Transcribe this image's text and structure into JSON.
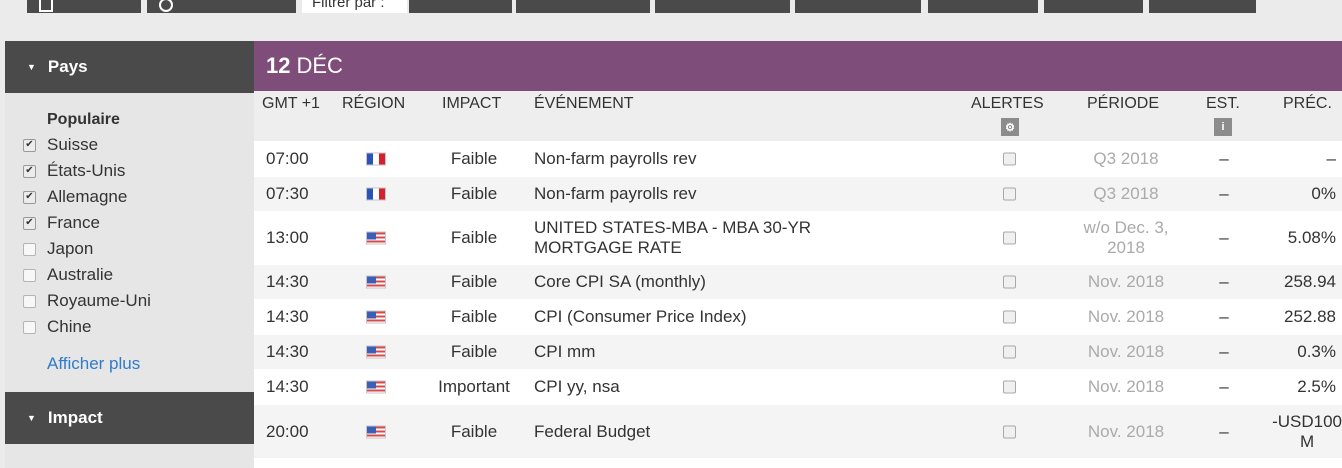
{
  "top_tabs": {
    "active_label": "Filtrer par :"
  },
  "sidebar": {
    "pays_header": "Pays",
    "popular_title": "Populaire",
    "countries": [
      {
        "name": "Suisse",
        "checked": true
      },
      {
        "name": "États-Unis",
        "checked": true
      },
      {
        "name": "Allemagne",
        "checked": true
      },
      {
        "name": "France",
        "checked": true
      },
      {
        "name": "Japon",
        "checked": false
      },
      {
        "name": "Australie",
        "checked": false
      },
      {
        "name": "Royaume-Uni",
        "checked": false
      },
      {
        "name": "Chine",
        "checked": false
      }
    ],
    "show_more": "Afficher plus",
    "impact_header": "Impact"
  },
  "date_bar": {
    "day": "12",
    "month": "DÉC"
  },
  "table": {
    "headers": {
      "time": "GMT +1",
      "region": "RÉGION",
      "impact": "IMPACT",
      "event": "ÉVÉNEMENT",
      "alerts": "ALERTES",
      "period": "PÉRIODE",
      "est": "EST.",
      "prev": "PRÉC."
    },
    "rows": [
      {
        "time": "07:00",
        "flag": "france-flag",
        "impact": "Faible",
        "event": "Non-farm payrolls rev",
        "event2": "",
        "period": "Q3 2018",
        "period2": "",
        "est": "–",
        "prev": "–",
        "prev2": ""
      },
      {
        "time": "07:30",
        "flag": "france-flag",
        "impact": "Faible",
        "event": "Non-farm payrolls rev",
        "event2": "",
        "period": "Q3 2018",
        "period2": "",
        "est": "–",
        "prev": "0%",
        "prev2": ""
      },
      {
        "time": "13:00",
        "flag": "us-flag",
        "impact": "Faible",
        "event": "UNITED STATES-MBA - MBA 30-YR",
        "event2": "MORTGAGE RATE",
        "period": "w/o Dec. 3,",
        "period2": "2018",
        "est": "–",
        "prev": "5.08%",
        "prev2": ""
      },
      {
        "time": "14:30",
        "flag": "us-flag",
        "impact": "Faible",
        "event": "Core CPI SA (monthly)",
        "event2": "",
        "period": "Nov. 2018",
        "period2": "",
        "est": "–",
        "prev": "258.94",
        "prev2": ""
      },
      {
        "time": "14:30",
        "flag": "us-flag",
        "impact": "Faible",
        "event": "CPI (Consumer Price Index)",
        "event2": "",
        "period": "Nov. 2018",
        "period2": "",
        "est": "–",
        "prev": "252.88",
        "prev2": ""
      },
      {
        "time": "14:30",
        "flag": "us-flag",
        "impact": "Faible",
        "event": "CPI mm",
        "event2": "",
        "period": "Nov. 2018",
        "period2": "",
        "est": "–",
        "prev": "0.3%",
        "prev2": ""
      },
      {
        "time": "14:30",
        "flag": "us-flag",
        "impact": "Important",
        "event": "CPI yy, nsa",
        "event2": "",
        "period": "Nov. 2018",
        "period2": "",
        "est": "–",
        "prev": "2.5%",
        "prev2": ""
      },
      {
        "time": "20:00",
        "flag": "us-flag",
        "impact": "Faible",
        "event": "Federal Budget",
        "event2": "",
        "period": "Nov. 2018",
        "period2": "",
        "est": "–",
        "prev": "-USD100",
        "prev2": "M"
      }
    ]
  },
  "colors": {
    "date_bar": "#7f4d79",
    "sidebar_header": "#4a4a4a",
    "link": "#2f7bcc"
  }
}
